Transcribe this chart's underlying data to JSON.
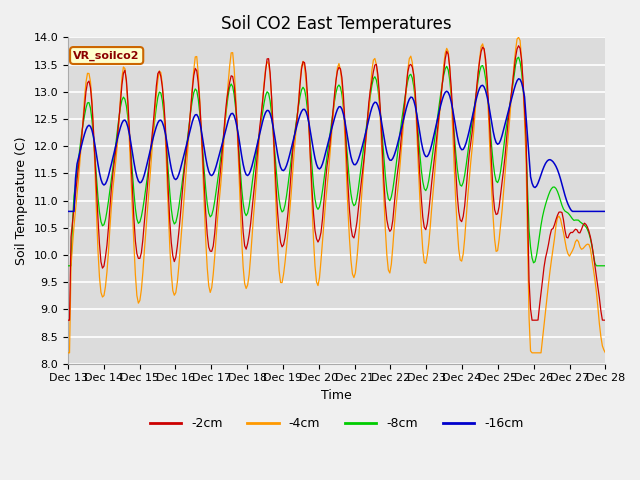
{
  "title": "Soil CO2 East Temperatures",
  "xlabel": "Time",
  "ylabel": "Soil Temperature (C)",
  "annotation": "VR_soilco2",
  "ylim": [
    8.0,
    14.0
  ],
  "yticks": [
    8.0,
    8.5,
    9.0,
    9.5,
    10.0,
    10.5,
    11.0,
    11.5,
    12.0,
    12.5,
    13.0,
    13.5,
    14.0
  ],
  "xtick_labels": [
    "Dec 13",
    "Dec 14",
    "Dec 15",
    "Dec 16",
    "Dec 17",
    "Dec 18",
    "Dec 19",
    "Dec 20",
    "Dec 21",
    "Dec 22",
    "Dec 23",
    "Dec 24",
    "Dec 25",
    "Dec 26",
    "Dec 27",
    "Dec 28"
  ],
  "colors": {
    "-2cm": "#cc0000",
    "-4cm": "#ff9900",
    "-8cm": "#00cc00",
    "-16cm": "#0000cc"
  },
  "legend_labels": [
    "-2cm",
    "-4cm",
    "-8cm",
    "-16cm"
  ],
  "plot_bg_color": "#dcdcdc",
  "fig_bg_color": "#f0f0f0",
  "title_fontsize": 12,
  "axis_fontsize": 9,
  "tick_fontsize": 8
}
